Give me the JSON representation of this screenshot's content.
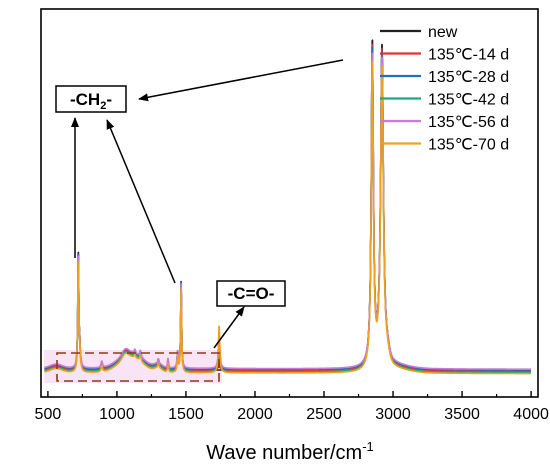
{
  "chart_data": {
    "type": "line",
    "xlabel": "Wave number/cm",
    "xlabel_superscript": "-1",
    "ylabel": "",
    "xlim": [
      450,
      4050
    ],
    "ylim": [
      0,
      1.05
    ],
    "y_ticks_shown": false,
    "xticks": [
      500,
      1000,
      1500,
      2000,
      2500,
      3000,
      3500,
      4000
    ],
    "grid": false,
    "legend_position": "top-right",
    "series": [
      {
        "name": "new",
        "color": "#222222"
      },
      {
        "name": "135℃-14 d",
        "color": "#e8312f"
      },
      {
        "name": "135℃-28 d",
        "color": "#1f6fc2"
      },
      {
        "name": "135℃-42 d",
        "color": "#20a97a"
      },
      {
        "name": "135℃-56 d",
        "color": "#c77ad8"
      },
      {
        "name": "135℃-70 d",
        "color": "#f0a020"
      }
    ],
    "peaks": [
      {
        "x": 720,
        "y": 0.375
      },
      {
        "x": 1465,
        "y": 0.28
      },
      {
        "x": 2850,
        "y": 1.0
      },
      {
        "x": 2920,
        "y": 0.99
      }
    ],
    "annotations": [
      {
        "text": "-CH",
        "subscript": "2",
        "suffix": "-"
      },
      {
        "text": "-C=O-"
      }
    ],
    "highlight_region": [
      470,
      1830
    ]
  }
}
